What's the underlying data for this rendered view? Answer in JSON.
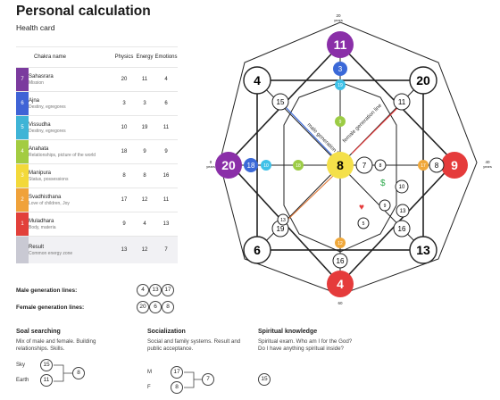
{
  "page": {
    "title": "Personal calculation",
    "subtitle": "Health card"
  },
  "table": {
    "headers": {
      "name": "Chakra name",
      "physics": "Physics",
      "energy": "Energy",
      "emotions": "Emotions"
    },
    "rows": [
      {
        "num": "7",
        "name": "Sahasrara",
        "desc": "Mission",
        "physics": "20",
        "energy": "11",
        "emotions": "4",
        "color": "#7b3b9e"
      },
      {
        "num": "6",
        "name": "Ajna",
        "desc": "Destiny, egregores",
        "physics": "3",
        "energy": "3",
        "emotions": "6",
        "color": "#3f63d6"
      },
      {
        "num": "5",
        "name": "Vissudha",
        "desc": "Destiny, egregores",
        "physics": "10",
        "energy": "19",
        "emotions": "11",
        "color": "#3fb4d6"
      },
      {
        "num": "4",
        "name": "Anahata",
        "desc": "Relationships, picture of the world",
        "physics": "18",
        "energy": "9",
        "emotions": "9",
        "color": "#a3cc41"
      },
      {
        "num": "3",
        "name": "Manipura",
        "desc": "Status, possessions",
        "physics": "8",
        "energy": "8",
        "emotions": "16",
        "color": "#f3d93a"
      },
      {
        "num": "2",
        "name": "Svadhisthana",
        "desc": "Love of children, Joy",
        "physics": "17",
        "energy": "12",
        "emotions": "11",
        "color": "#f0a23a"
      },
      {
        "num": "1",
        "name": "Muladhara",
        "desc": "Body, materia",
        "physics": "9",
        "energy": "4",
        "emotions": "13",
        "color": "#e2403a"
      }
    ],
    "result": {
      "name": "Result",
      "desc": "Common energy zone",
      "physics": "13",
      "energy": "12",
      "emotions": "7",
      "color": "#c9c9d3"
    }
  },
  "generation": {
    "male_label": "Male generation lines:",
    "male": [
      "4",
      "13",
      "17"
    ],
    "female_label": "Female generation lines:",
    "female": [
      "20",
      "6",
      "8"
    ]
  },
  "sections": {
    "soul": {
      "title": "Soal searching",
      "text": "Mix of male and female. Building relationships. Skills.",
      "sky_label": "Sky",
      "sky": "15",
      "earth_label": "Earth",
      "earth": "11",
      "result": "8"
    },
    "social": {
      "title": "Socialization",
      "text": "Social and family systems. Result and public acceptance.",
      "m_label": "M",
      "m": "17",
      "f_label": "F",
      "f": "8",
      "result": "7"
    },
    "spiritual": {
      "title": "Spiritual knowledge",
      "text": "Spiritual exam. Who am I for the God? Do I have anything spiritual inside?",
      "value": "15"
    }
  },
  "diagram": {
    "outer_top": "11",
    "outer_left": "20",
    "outer_right": "9",
    "outer_bottom": "4",
    "outer_tl": "4",
    "outer_tr": "20",
    "outer_bl": "6",
    "outer_br": "13",
    "inner_tl": "15",
    "inner_tr": "11",
    "inner_bl": "19",
    "inner_br": "16",
    "center": "8",
    "v3": "3",
    "v19": "19",
    "v9": "9",
    "v18": "18",
    "v10": "10",
    "v8r": "8",
    "v17": "17",
    "v13": "13",
    "v12": "12",
    "v7": "7",
    "v5": "5",
    "v6": "6",
    "v10b": "10",
    "v13b": "13",
    "v9b": "9",
    "male_line": "male generation line",
    "female_line": "female generation line",
    "age_top": "20",
    "age_left": "0",
    "age_right": "40",
    "age_bottom": "60",
    "years_label": "years",
    "colors": {
      "purple": "#8a2fa8",
      "blue": "#3b69d8",
      "cyan": "#3ec1e8",
      "green": "#9ccc45",
      "yellow": "#f4e04a",
      "orange": "#f0a83a",
      "red": "#e53b3b"
    }
  }
}
